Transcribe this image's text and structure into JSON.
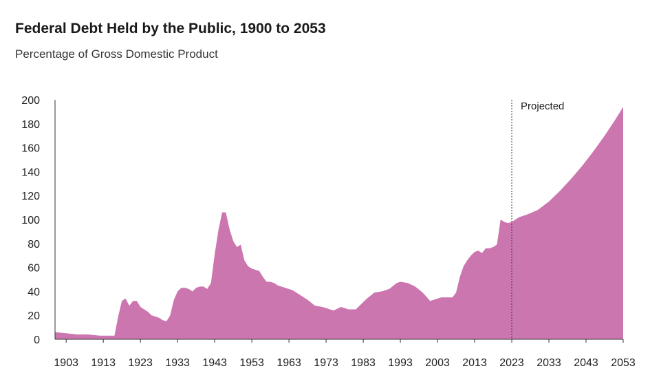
{
  "chart_data": {
    "type": "area",
    "title": "Federal Debt Held by the Public, 1900 to 2053",
    "subtitle": "Percentage of Gross Domestic Product",
    "xlabel": "",
    "ylabel": "",
    "xlim": [
      1900,
      2053
    ],
    "ylim": [
      0,
      200
    ],
    "y_ticks": [
      0,
      20,
      40,
      60,
      80,
      100,
      120,
      140,
      160,
      180,
      200
    ],
    "x_ticks": [
      1903,
      1913,
      1923,
      1933,
      1943,
      1953,
      1963,
      1973,
      1983,
      1993,
      2003,
      2013,
      2023,
      2033,
      2043,
      2053
    ],
    "grid": false,
    "legend": "none",
    "fill_color": "#cc76b0",
    "annotation": {
      "label": "Projected",
      "x": 2023
    },
    "series": [
      {
        "x": [
          1900,
          1903,
          1906,
          1909,
          1912,
          1914,
          1916,
          1917,
          1918,
          1919,
          1920,
          1921,
          1922,
          1923,
          1924,
          1925,
          1926,
          1927,
          1928,
          1929,
          1930,
          1931,
          1932,
          1933,
          1934,
          1935,
          1936,
          1937,
          1938,
          1939,
          1940,
          1941,
          1942,
          1943,
          1944,
          1945,
          1946,
          1947,
          1948,
          1949,
          1950,
          1951,
          1952,
          1953,
          1954,
          1955,
          1956,
          1957,
          1958,
          1959,
          1960,
          1962,
          1964,
          1966,
          1968,
          1970,
          1972,
          1974,
          1975,
          1977,
          1979,
          1981,
          1982,
          1984,
          1986,
          1988,
          1990,
          1992,
          1993,
          1995,
          1997,
          1999,
          2001,
          2002,
          2004,
          2006,
          2007,
          2008,
          2009,
          2010,
          2011,
          2012,
          2013,
          2014,
          2015,
          2016,
          2017,
          2018,
          2019,
          2020,
          2021,
          2022,
          2023,
          2025,
          2027,
          2030,
          2033,
          2036,
          2039,
          2042,
          2045,
          2048,
          2051,
          2053
        ],
        "values": [
          6,
          5,
          4,
          4,
          3,
          3,
          3,
          19,
          32,
          34,
          28,
          32,
          32,
          27,
          25,
          23,
          20,
          19,
          18,
          16,
          15,
          20,
          33,
          40,
          43,
          43,
          42,
          40,
          43,
          44,
          44,
          42,
          47,
          71,
          91,
          106,
          106,
          92,
          82,
          77,
          79,
          66,
          61,
          59,
          58,
          57,
          52,
          48,
          48,
          47,
          45,
          43,
          41,
          37,
          33,
          28,
          27,
          25,
          24,
          27,
          25,
          25,
          28,
          34,
          39,
          40,
          42,
          47,
          48,
          47,
          44,
          39,
          32,
          33,
          35,
          35,
          35,
          39,
          52,
          61,
          66,
          70,
          73,
          74,
          72,
          76,
          76,
          77,
          79,
          100,
          98,
          97,
          98,
          102,
          104,
          108,
          115,
          124,
          134,
          145,
          157,
          170,
          184,
          194
        ]
      }
    ]
  }
}
